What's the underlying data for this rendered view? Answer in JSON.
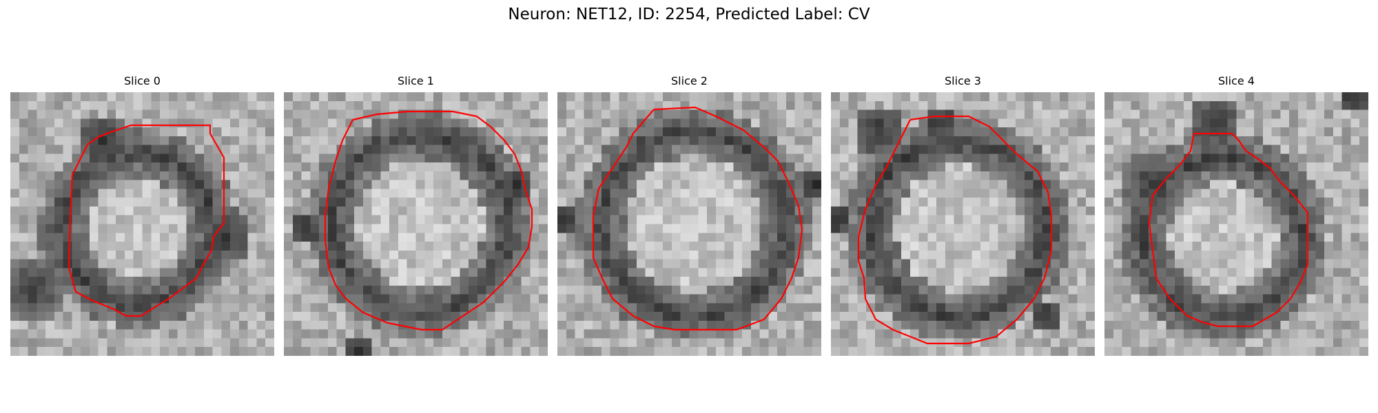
{
  "figure": {
    "title": "Neuron: NET12, ID: 2254, Predicted Label: CV",
    "contour_color": "#ff0000"
  },
  "panels": [
    {
      "title": "Slice 0"
    },
    {
      "title": "Slice 1"
    },
    {
      "title": "Slice 2"
    },
    {
      "title": "Slice 3"
    },
    {
      "title": "Slice 4"
    }
  ]
}
